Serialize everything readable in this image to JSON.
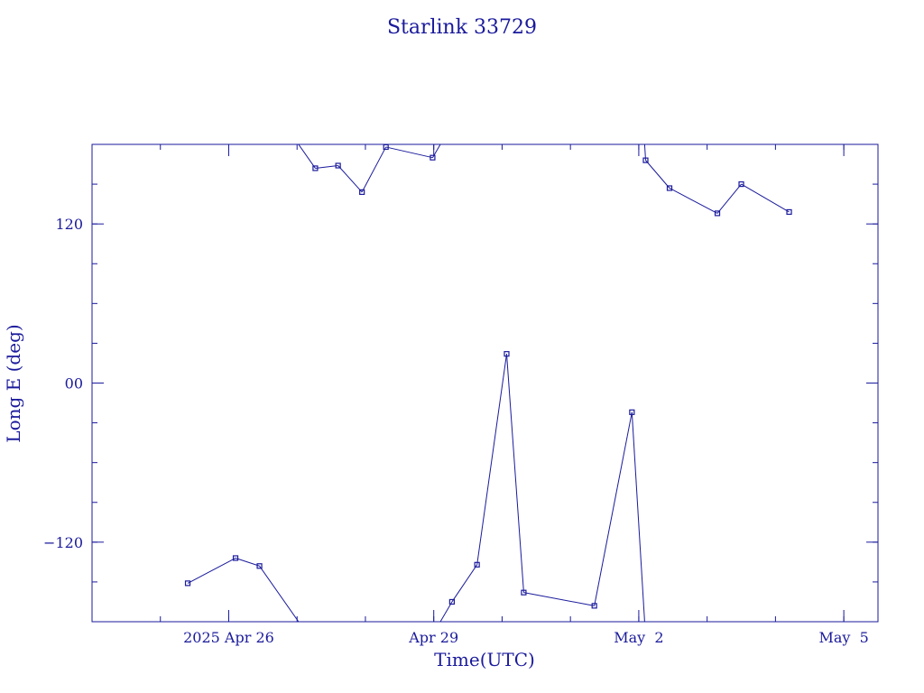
{
  "chart_data": {
    "type": "line",
    "title": "Starlink 33729",
    "xlabel": "Time(UTC)",
    "ylabel": "Long E (deg)",
    "x_unit": "date (2025, UTC)",
    "xlim": [
      "2025-04-24 00:00",
      "2025-05-05 12:00"
    ],
    "ylim": [
      -180,
      180
    ],
    "x_ticks": [
      {
        "label": "2025 Apr 26",
        "value": "2025-04-26 00:00"
      },
      {
        "label": "Apr 29",
        "value": "2025-04-29 00:00"
      },
      {
        "label": "May  2",
        "value": "2025-05-02 00:00"
      },
      {
        "label": "May  5",
        "value": "2025-05-05 00:00"
      }
    ],
    "y_ticks": [
      {
        "label": "120",
        "value": 120
      },
      {
        "label": "00",
        "value": 0
      },
      {
        "label": "−120",
        "value": -120
      }
    ],
    "grid": false,
    "wraps_at": [
      -180,
      180
    ],
    "color": "#1a1a9c",
    "series": [
      {
        "points": [
          {
            "x": "2025-04-25 09:36",
            "y": -151
          },
          {
            "x": "2025-04-26 02:24",
            "y": -132
          },
          {
            "x": "2025-04-26 10:48",
            "y": -138
          },
          {
            "x": "2025-04-27 06:24",
            "y": 162
          },
          {
            "x": "2025-04-27 14:24",
            "y": 164
          },
          {
            "x": "2025-04-27 22:48",
            "y": 144
          },
          {
            "x": "2025-04-28 07:12",
            "y": 178
          },
          {
            "x": "2025-04-28 23:36",
            "y": 170
          },
          {
            "x": "2025-04-29 06:24",
            "y": -165
          },
          {
            "x": "2025-04-29 15:12",
            "y": -137
          },
          {
            "x": "2025-04-30 01:36",
            "y": 22
          },
          {
            "x": "2025-04-30 07:36",
            "y": -158
          },
          {
            "x": "2025-05-01 08:24",
            "y": -168
          },
          {
            "x": "2025-05-01 21:36",
            "y": -22
          },
          {
            "x": "2025-05-02 02:24",
            "y": 168
          },
          {
            "x": "2025-05-02 10:48",
            "y": 147
          },
          {
            "x": "2025-05-03 03:36",
            "y": 128
          },
          {
            "x": "2025-05-03 12:00",
            "y": 150
          },
          {
            "x": "2025-05-04 04:48",
            "y": 129
          }
        ]
      }
    ]
  }
}
